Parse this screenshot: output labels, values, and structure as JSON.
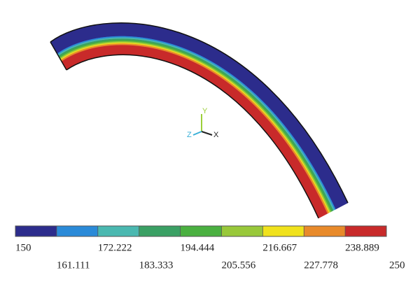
{
  "legend": {
    "colors": [
      "#2c2c8c",
      "#2a8ad8",
      "#4ab8b0",
      "#3aa064",
      "#4ab040",
      "#98c83a",
      "#f0e21c",
      "#e88a2a",
      "#c82a2a"
    ],
    "ticks": [
      150,
      161.111,
      172.222,
      183.333,
      194.444,
      205.556,
      216.667,
      227.778,
      238.889,
      250
    ]
  },
  "triad": {
    "x": "X",
    "y": "Y",
    "z": "Z"
  }
}
